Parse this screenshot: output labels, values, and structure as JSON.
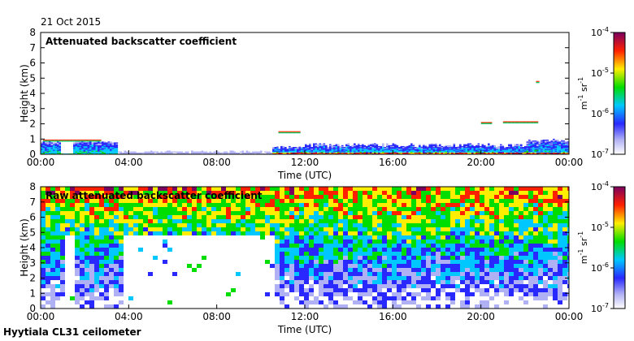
{
  "date": "21 Oct 2015",
  "site_label": "Hyytiala CL31 ceilometer",
  "chart_data": [
    {
      "type": "heatmap",
      "title": "Attenuated backscatter coefficient",
      "xlabel": "Time (UTC)",
      "ylabel": "Height (km)",
      "x_ticks": [
        "00:00",
        "04:00",
        "08:00",
        "12:00",
        "16:00",
        "20:00",
        "00:00"
      ],
      "y_ticks": [
        "0",
        "1",
        "2",
        "3",
        "4",
        "5",
        "6",
        "7",
        "8"
      ],
      "xlim_hours": [
        0,
        24
      ],
      "ylim_km": [
        0,
        8
      ],
      "colorbar": {
        "label": "m-1 sr-1",
        "scale": "log",
        "ticks": [
          "10-7",
          "10-6",
          "10-5",
          "10-4"
        ],
        "range": [
          1e-07,
          0.0001
        ]
      },
      "features": [
        {
          "name": "boundary-layer",
          "hours": [
            0,
            3.5
          ],
          "top_km": 0.8
        },
        {
          "name": "cloud",
          "hours": [
            0.1,
            2.7
          ],
          "height_km": 0.85
        },
        {
          "name": "cloud",
          "hours": [
            10.8,
            11.8
          ],
          "height_km": 1.4
        },
        {
          "name": "cloud",
          "hours": [
            20.0,
            20.5
          ],
          "height_km": 2.0
        },
        {
          "name": "cloud",
          "hours": [
            21.0,
            22.6
          ],
          "height_km": 2.05
        },
        {
          "name": "cloud",
          "hours": [
            22.5,
            22.6
          ],
          "height_km": 4.7
        }
      ]
    },
    {
      "type": "heatmap",
      "title": "Raw attenuated backscatter coefficient",
      "xlabel": "Time (UTC)",
      "ylabel": "Height (km)",
      "x_ticks": [
        "00:00",
        "04:00",
        "08:00",
        "12:00",
        "16:00",
        "20:00",
        "00:00"
      ],
      "y_ticks": [
        "0",
        "1",
        "2",
        "3",
        "4",
        "5",
        "6",
        "7",
        "8"
      ],
      "xlim_hours": [
        0,
        24
      ],
      "ylim_km": [
        0,
        8
      ],
      "colorbar": {
        "label": "m-1 sr-1",
        "scale": "log",
        "ticks": [
          "10-7",
          "10-6",
          "10-5",
          "10-4"
        ],
        "range": [
          1e-07,
          0.0001
        ]
      },
      "features": [
        {
          "name": "noise-free-region",
          "hours": [
            3.6,
            10.5
          ],
          "top_km": 5.0
        },
        {
          "name": "noise-free-column",
          "hours": [
            1.1,
            1.5
          ],
          "top_km": 4.9
        }
      ]
    }
  ]
}
